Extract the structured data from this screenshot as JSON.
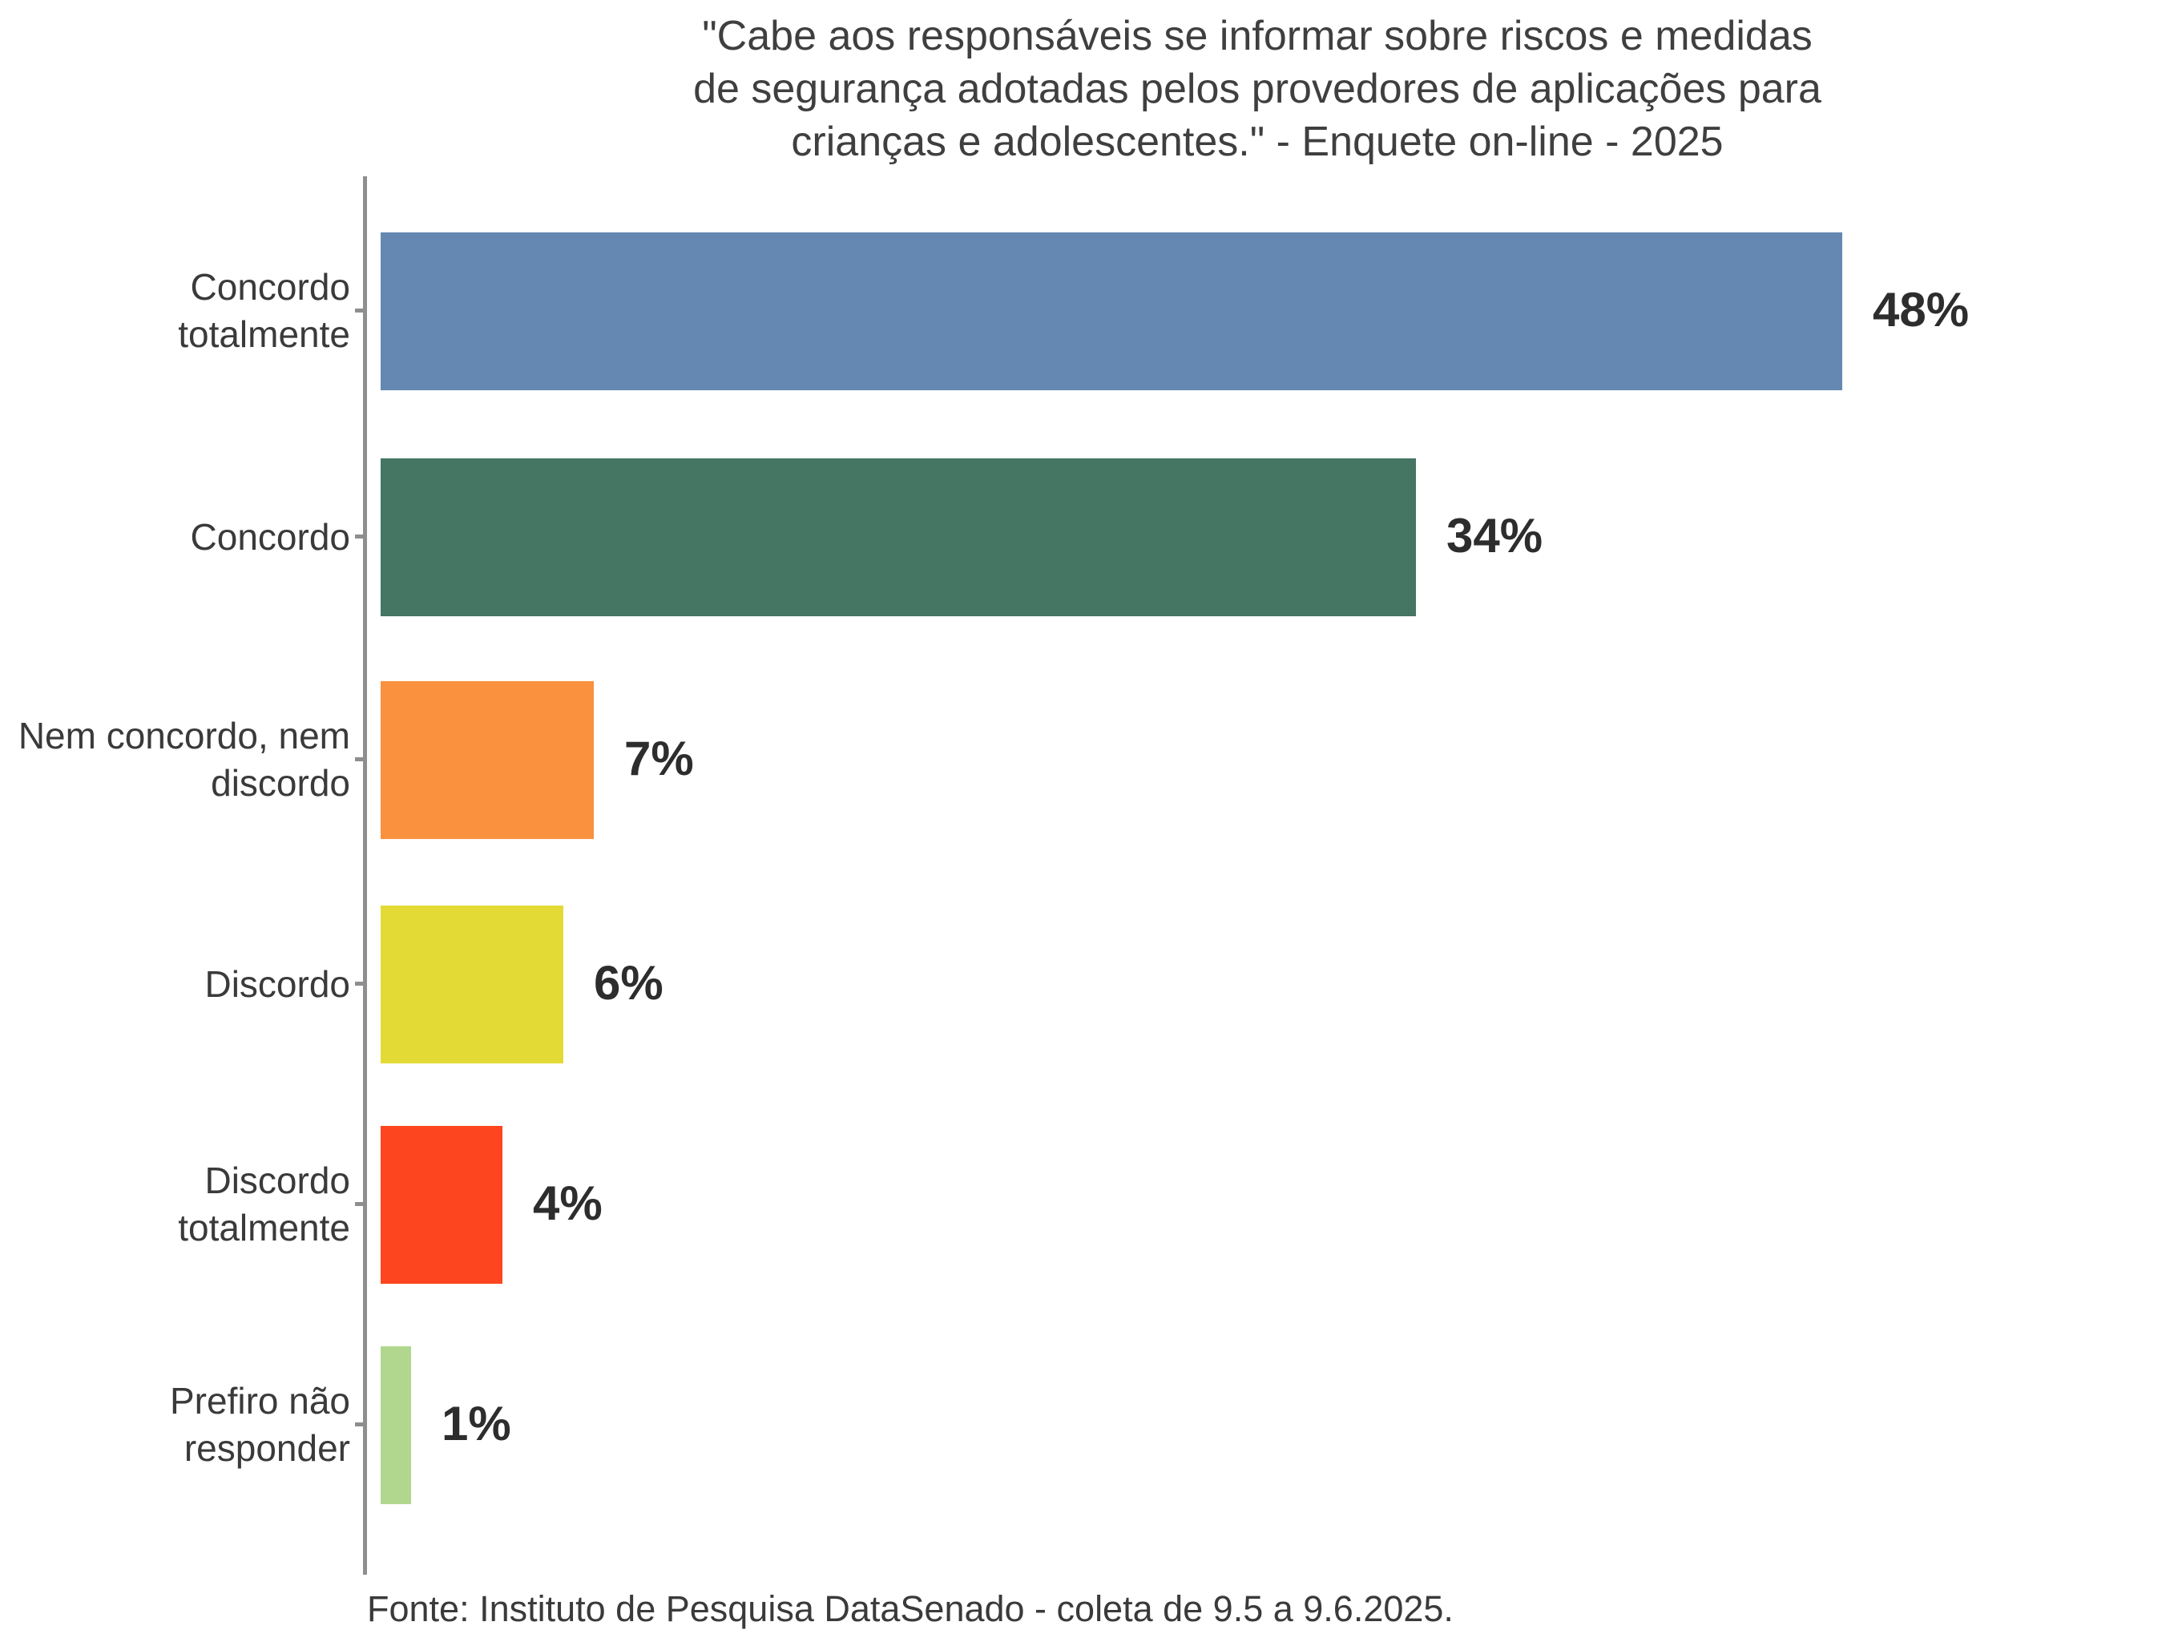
{
  "chart_data": {
    "type": "bar",
    "orientation": "horizontal",
    "title": "\"Cabe aos responsáveis se informar sobre riscos e medidas de segurança adotadas pelos provedores de aplicações para crianças e adolescentes.\" - Enquete on-line - 2025",
    "title_lines": [
      "\"Cabe aos responsáveis se informar sobre riscos e medidas",
      "de segurança adotadas pelos provedores de aplicações para",
      "crianças e adolescentes.\" - Enquete on-line - 2025"
    ],
    "categories": [
      "Concordo totalmente",
      "Concordo",
      "Nem concordo, nem discordo",
      "Discordo",
      "Discordo totalmente",
      "Prefiro não responder"
    ],
    "categories_wrapped": [
      "Concordo\ntotalmente",
      "Concordo",
      "Nem concordo, nem\ndiscordo",
      "Discordo",
      "Discordo\ntotalmente",
      "Prefiro não\nresponder"
    ],
    "values": [
      48,
      34,
      7,
      6,
      4,
      1
    ],
    "value_labels": [
      "48%",
      "34%",
      "7%",
      "6%",
      "4%",
      "1%"
    ],
    "bar_colors": [
      "#6488b2",
      "#447663",
      "#f9913f",
      "#e3da36",
      "#fd4620",
      "#b1d78f"
    ],
    "xlim": [
      0,
      59
    ],
    "grid": false,
    "legend": "none",
    "xlabel": "",
    "ylabel": "",
    "source": "Fonte: Instituto de Pesquisa DataSenado - coleta de 9.5 a 9.6.2025."
  },
  "style_colors": {
    "axis": "#8e8e8e",
    "title_text": "#3f3f3f",
    "category_text": "#3a3a3a",
    "value_text": "#2d2d2d",
    "background": "#ffffff"
  }
}
